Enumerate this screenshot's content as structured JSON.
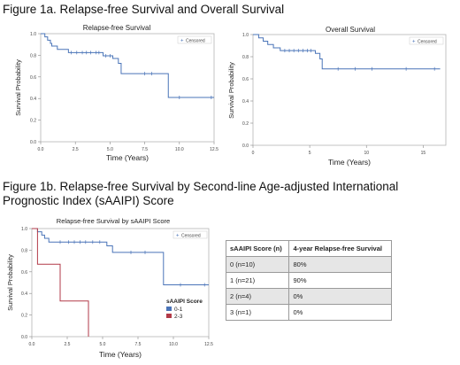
{
  "figure_1a": {
    "title": "Figure 1a. Relapse-free Survival and Overall Survival"
  },
  "figure_1b": {
    "title": "Figure 1b. Relapse-free Survival by Second-line Age-adjusted International Prognostic Index (sAAIPI) Score"
  },
  "score_table": {
    "headers": [
      "sAAIPI Score (n)",
      "4-year Relapse-free Survival"
    ],
    "rows": [
      [
        "0 (n=10)",
        "80%"
      ],
      [
        "1 (n=21)",
        "90%"
      ],
      [
        "2 (n=4)",
        "0%"
      ],
      [
        "3 (n=1)",
        "0%"
      ]
    ]
  },
  "chart_data": [
    {
      "id": "rfs",
      "type": "line",
      "title": "Relapse-free Survival",
      "xlabel": "Time (Years)",
      "ylabel": "Survival Probability",
      "xlim": [
        0,
        12.5
      ],
      "ylim": [
        0,
        1
      ],
      "xticks": [
        "0.0",
        "2.5",
        "5.0",
        "7.5",
        "10.0",
        "12.5"
      ],
      "yticks": [
        "0.0",
        "0.2",
        "0.4",
        "0.6",
        "0.8",
        "1.0"
      ],
      "legend": {
        "label": "Censored",
        "position": "top-right"
      },
      "colors": {
        "line": "#4a74b8",
        "censor": "#4a74b8"
      },
      "series": [
        {
          "steps": [
            [
              0,
              1.0
            ],
            [
              0.3,
              0.97
            ],
            [
              0.5,
              0.94
            ],
            [
              0.7,
              0.91
            ],
            [
              0.8,
              0.885
            ],
            [
              1.2,
              0.855
            ],
            [
              2.0,
              0.825
            ],
            [
              4.5,
              0.795
            ],
            [
              5.2,
              0.77
            ],
            [
              5.6,
              0.725
            ],
            [
              5.8,
              0.63
            ],
            [
              9.2,
              0.41
            ],
            [
              12.5,
              0.41
            ]
          ],
          "censored": [
            [
              2.2,
              0.825
            ],
            [
              2.6,
              0.825
            ],
            [
              3.0,
              0.825
            ],
            [
              3.3,
              0.825
            ],
            [
              3.6,
              0.825
            ],
            [
              4.0,
              0.825
            ],
            [
              4.2,
              0.825
            ],
            [
              4.7,
              0.795
            ],
            [
              5.0,
              0.795
            ],
            [
              7.5,
              0.63
            ],
            [
              8.0,
              0.63
            ],
            [
              10.0,
              0.41
            ],
            [
              12.3,
              0.41
            ]
          ]
        }
      ]
    },
    {
      "id": "os",
      "type": "line",
      "title": "Overall Survival",
      "xlabel": "Time (Years)",
      "ylabel": "Survival Probability",
      "xlim": [
        0,
        17
      ],
      "ylim": [
        0,
        1
      ],
      "xticks": [
        "0",
        "5",
        "10",
        "15"
      ],
      "yticks": [
        "0.0",
        "0.2",
        "0.4",
        "0.6",
        "0.8",
        "1.0"
      ],
      "legend": {
        "label": "Censored",
        "position": "top-right"
      },
      "colors": {
        "line": "#4a74b8",
        "censor": "#4a74b8"
      },
      "series": [
        {
          "steps": [
            [
              0,
              1.0
            ],
            [
              0.5,
              0.97
            ],
            [
              0.9,
              0.94
            ],
            [
              1.3,
              0.91
            ],
            [
              1.8,
              0.88
            ],
            [
              2.4,
              0.855
            ],
            [
              5.5,
              0.83
            ],
            [
              5.9,
              0.78
            ],
            [
              6.1,
              0.69
            ],
            [
              16.5,
              0.69
            ]
          ],
          "censored": [
            [
              2.8,
              0.855
            ],
            [
              3.2,
              0.855
            ],
            [
              3.6,
              0.855
            ],
            [
              4.0,
              0.855
            ],
            [
              4.4,
              0.855
            ],
            [
              4.8,
              0.855
            ],
            [
              5.1,
              0.855
            ],
            [
              7.5,
              0.69
            ],
            [
              9.0,
              0.69
            ],
            [
              10.5,
              0.69
            ],
            [
              13.5,
              0.69
            ],
            [
              16.0,
              0.69
            ]
          ]
        }
      ]
    },
    {
      "id": "rfs-saaipi",
      "type": "line",
      "title": "Relapse-free Survival by sAAIPI Score",
      "xlabel": "Time (Years)",
      "ylabel": "Survival Probability",
      "xlim": [
        0,
        12.5
      ],
      "ylim": [
        0,
        1
      ],
      "xticks": [
        "0.0",
        "2.5",
        "5.0",
        "7.5",
        "10.0",
        "12.5"
      ],
      "yticks": [
        "0.0",
        "0.2",
        "0.4",
        "0.6",
        "0.8",
        "1.0"
      ],
      "legend": {
        "label": "Censored",
        "position": "top-right"
      },
      "group_legend": {
        "title": "sAAIPI Score",
        "position": "bottom-right"
      },
      "series": [
        {
          "name": "0-1",
          "color": "#4a74b8",
          "steps": [
            [
              0,
              1.0
            ],
            [
              0.4,
              0.97
            ],
            [
              0.7,
              0.94
            ],
            [
              0.9,
              0.91
            ],
            [
              1.2,
              0.875
            ],
            [
              5.3,
              0.84
            ],
            [
              5.7,
              0.78
            ],
            [
              9.3,
              0.48
            ],
            [
              12.5,
              0.48
            ]
          ],
          "censored": [
            [
              2.0,
              0.875
            ],
            [
              2.6,
              0.875
            ],
            [
              3.0,
              0.875
            ],
            [
              3.4,
              0.875
            ],
            [
              3.8,
              0.875
            ],
            [
              4.3,
              0.875
            ],
            [
              4.8,
              0.875
            ],
            [
              7.0,
              0.78
            ],
            [
              8.0,
              0.78
            ],
            [
              10.5,
              0.48
            ],
            [
              12.2,
              0.48
            ]
          ]
        },
        {
          "name": "2-3",
          "color": "#b23a48",
          "steps": [
            [
              0,
              1.0
            ],
            [
              0.4,
              0.67
            ],
            [
              2.0,
              0.33
            ],
            [
              4.0,
              0.0
            ]
          ],
          "censored": []
        }
      ]
    }
  ]
}
